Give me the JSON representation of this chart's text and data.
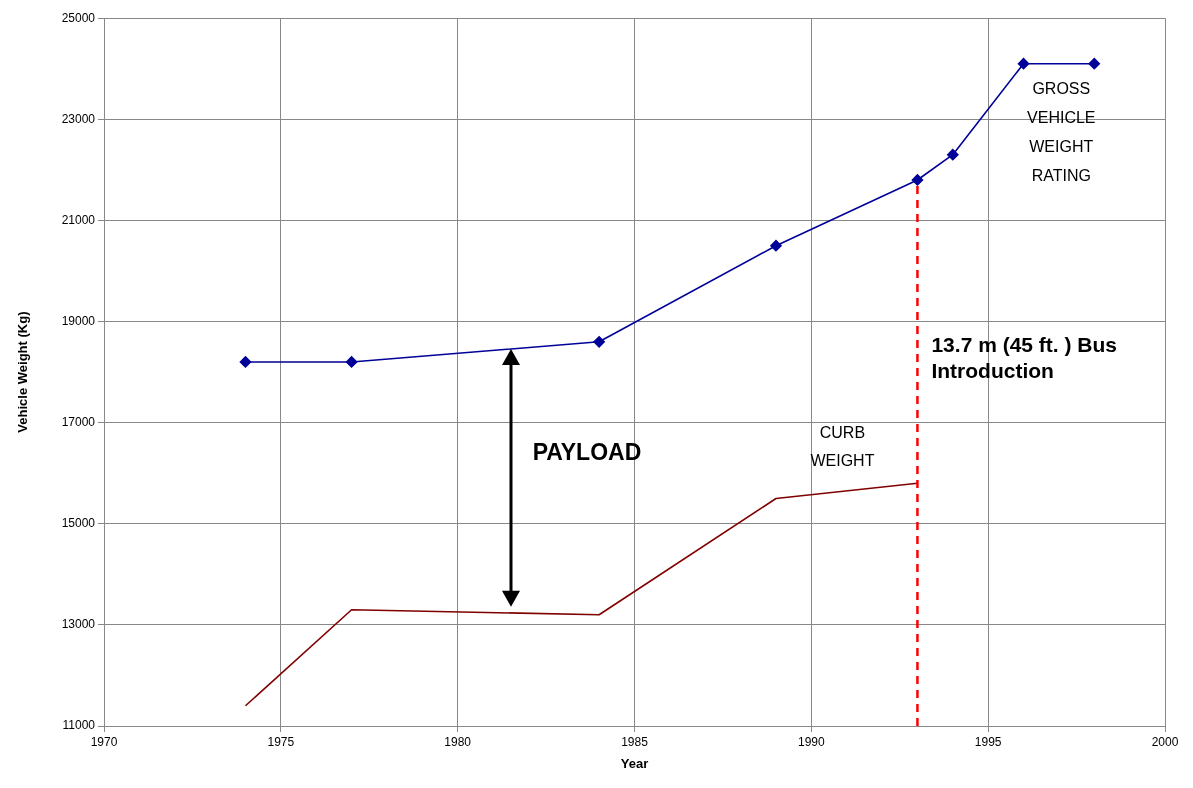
{
  "chart_data": {
    "type": "line",
    "xlabel": "Year",
    "ylabel": "Vehicle Weight (Kg)",
    "xlim": [
      1970,
      2000
    ],
    "xticks": [
      1970,
      1975,
      1980,
      1985,
      1990,
      1995,
      2000
    ],
    "ylim": [
      11000,
      25000
    ],
    "yticks": [
      11000,
      13000,
      15000,
      17000,
      19000,
      21000,
      23000,
      25000
    ],
    "grid": true,
    "legend": false,
    "marker": "diamond",
    "line_style": "solid",
    "series": [
      {
        "name": "GROSS VEHICLE WEIGHT RATING",
        "color": "#000099",
        "x": [
          1974,
          1977,
          1984,
          1989,
          1993,
          1994,
          1996,
          1998
        ],
        "values": [
          18200,
          18200,
          18600,
          20500,
          21800,
          22300,
          24100,
          24100
        ]
      },
      {
        "name": "CURB WEIGHT",
        "color": "#800000",
        "marker": "none",
        "x": [
          1974,
          1977,
          1984,
          1989,
          1993
        ],
        "values": [
          11400,
          13300,
          13200,
          15500,
          15800
        ]
      }
    ],
    "ref_lines": [
      {
        "axis": "x",
        "value": 1993,
        "label": "13.7 m (45 ft. ) Bus Introduction",
        "color": "#ff0000",
        "line_style": "dashed"
      }
    ],
    "annotations": [
      "PAYLOAD"
    ]
  }
}
